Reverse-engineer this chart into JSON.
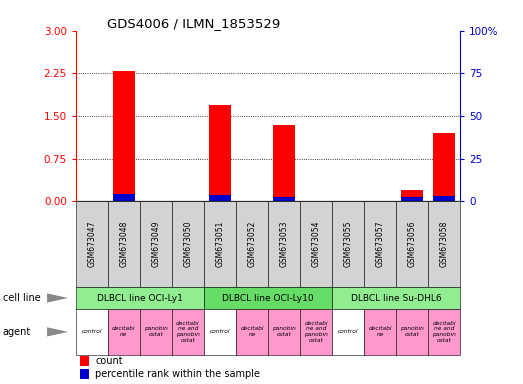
{
  "title": "GDS4006 / ILMN_1853529",
  "samples": [
    "GSM673047",
    "GSM673048",
    "GSM673049",
    "GSM673050",
    "GSM673051",
    "GSM673052",
    "GSM673053",
    "GSM673054",
    "GSM673055",
    "GSM673057",
    "GSM673056",
    "GSM673058"
  ],
  "count_values": [
    0,
    2.3,
    0,
    0,
    1.7,
    0,
    1.35,
    0,
    0,
    0,
    0.2,
    1.2
  ],
  "percentile_values": [
    0,
    0.13,
    0,
    0,
    0.12,
    0,
    0.07,
    0,
    0,
    0,
    0.07,
    0.1
  ],
  "ylim_left": [
    0,
    3
  ],
  "ylim_right": [
    0,
    100
  ],
  "yticks_left": [
    0,
    0.75,
    1.5,
    2.25,
    3
  ],
  "yticks_right": [
    0,
    25,
    50,
    75,
    100
  ],
  "ytick_right_labels": [
    "0",
    "25",
    "50",
    "75",
    "100%"
  ],
  "cell_lines": [
    {
      "label": "DLBCL line OCI-Ly1",
      "start": 0,
      "end": 4,
      "color": "#90EE90"
    },
    {
      "label": "DLBCL line OCI-Ly10",
      "start": 4,
      "end": 8,
      "color": "#66DD66"
    },
    {
      "label": "DLBCL line Su-DHL6",
      "start": 8,
      "end": 12,
      "color": "#90EE90"
    }
  ],
  "agents": [
    "control",
    "decitabi\nne",
    "panobin\nostat",
    "decitabi\nne and\npanobin\nostat",
    "control",
    "decitabi\nne",
    "panobin\nostat",
    "decitabi\nne and\npanobin\nostat",
    "control",
    "decitabi\nne",
    "panobin\nostat",
    "decitabi\nne and\npanobin\nostat"
  ],
  "agent_colors": [
    "#FFFFFF",
    "#FF99CC",
    "#FF99CC",
    "#FF99CC",
    "#FFFFFF",
    "#FF99CC",
    "#FF99CC",
    "#FF99CC",
    "#FFFFFF",
    "#FF99CC",
    "#FF99CC",
    "#FF99CC"
  ],
  "bar_color_red": "#FF0000",
  "bar_color_blue": "#0000CC",
  "tick_color_left": "#FF0000",
  "tick_color_right": "#0000CC",
  "grid_color": "#000000",
  "sample_bg": "#D3D3D3",
  "legend_count_color": "#FF0000",
  "legend_pct_color": "#0000CC",
  "cell_line_row_label": "cell line",
  "agent_row_label": "agent"
}
